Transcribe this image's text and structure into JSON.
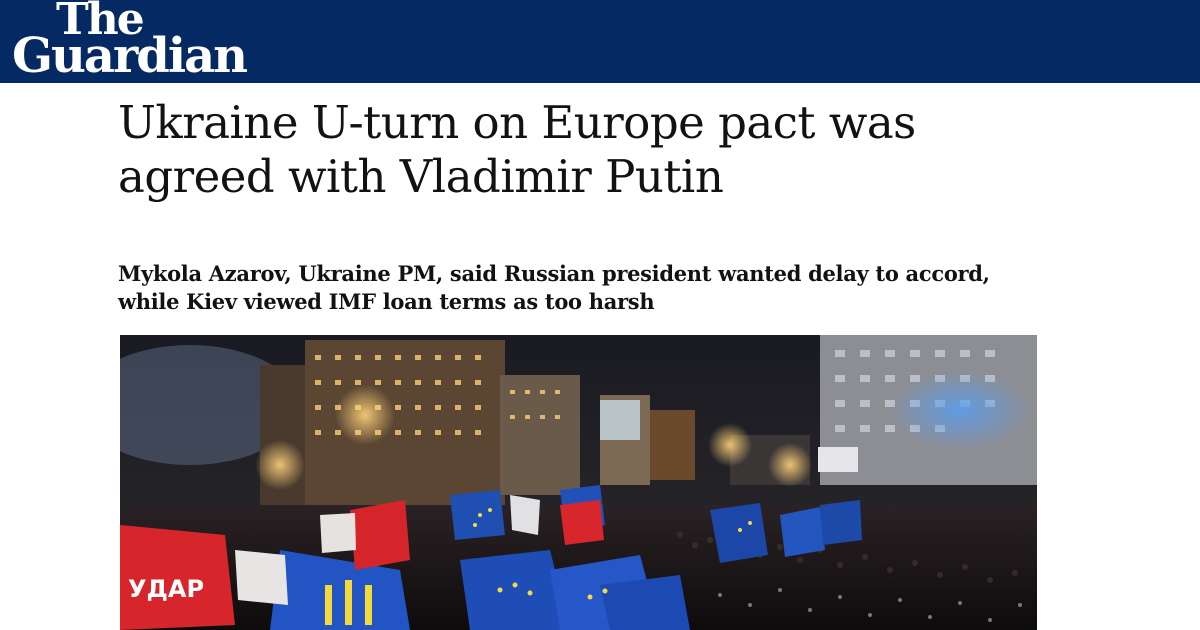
{
  "masthead": {
    "logo_line1": "The",
    "logo_line2": "Guardian",
    "background_color": "#052962"
  },
  "article": {
    "headline": "Ukraine U-turn on Europe pact was agreed with Vladimir Putin",
    "standfirst": "Mykola Azarov, Ukraine PM, said Russian president wanted delay to accord, while Kiev viewed IMF loan terms as too harsh"
  },
  "photo": {
    "flag_text": "УДАР"
  }
}
